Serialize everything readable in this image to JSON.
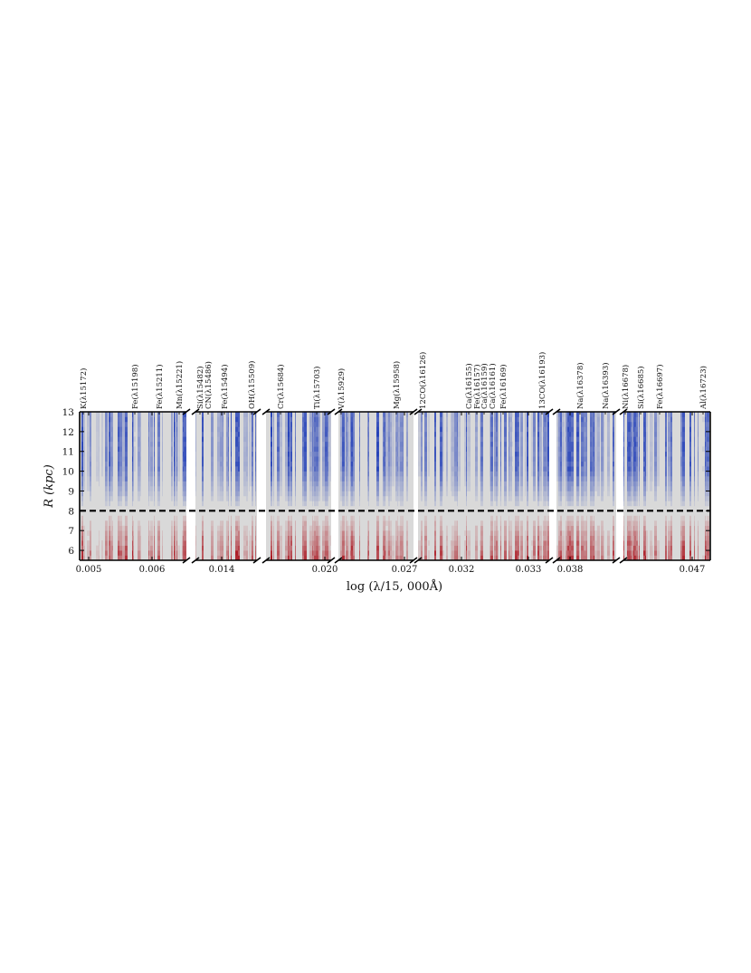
{
  "chart_data": {
    "type": "heatmap",
    "title": "",
    "xlabel": "log (λ/15, 000Å)",
    "ylabel": "R (kpc)",
    "ylim": [
      5.5,
      13
    ],
    "y_ticks": [
      6,
      7,
      8,
      9,
      10,
      11,
      12,
      13
    ],
    "reference_line": {
      "y": 8,
      "style": "dashed"
    },
    "colormap": [
      "#2340b8",
      "#d9d9d9",
      "#a80a14"
    ],
    "panels": [
      {
        "id": "p1",
        "x_ticks": [
          "0.005",
          "0.006"
        ],
        "lines": [
          "K(λ15172)",
          "Fe(λ15198)",
          "Fe(λ15211)",
          "Mn(λ15221)"
        ]
      },
      {
        "id": "p2",
        "x_ticks": [
          "0.014"
        ],
        "lines": [
          "Si(λ15482)",
          "CN(λ15486)",
          "Fe(λ15494)",
          "OH(λ15509)"
        ]
      },
      {
        "id": "p3",
        "x_ticks": [
          "0.020"
        ],
        "lines": [
          "Cr(λ15684)",
          "Ti(λ15703)"
        ]
      },
      {
        "id": "p4",
        "x_ticks": [
          "0.027"
        ],
        "lines": [
          "V(λ15929)",
          "Mg(λ15958)"
        ]
      },
      {
        "id": "p5",
        "x_ticks": [
          "0.032",
          "0.033"
        ],
        "lines": [
          "12CO(λ16126)",
          "Ca(λ16155)",
          "Fe(λ16157)",
          "Ca(λ16159)",
          "Ca(λ16161)",
          "Fe(λ16169)",
          "13CO(λ16193)"
        ]
      },
      {
        "id": "p6",
        "x_ticks": [
          "0.038"
        ],
        "lines": [
          "Na(λ16378)",
          "Na(λ16393)"
        ]
      },
      {
        "id": "p7",
        "x_ticks": [
          "0.047"
        ],
        "lines": [
          "Ni(λ16678)",
          "Si(λ16685)",
          "Fe(λ16697)",
          "Al(λ16723)"
        ]
      }
    ]
  }
}
